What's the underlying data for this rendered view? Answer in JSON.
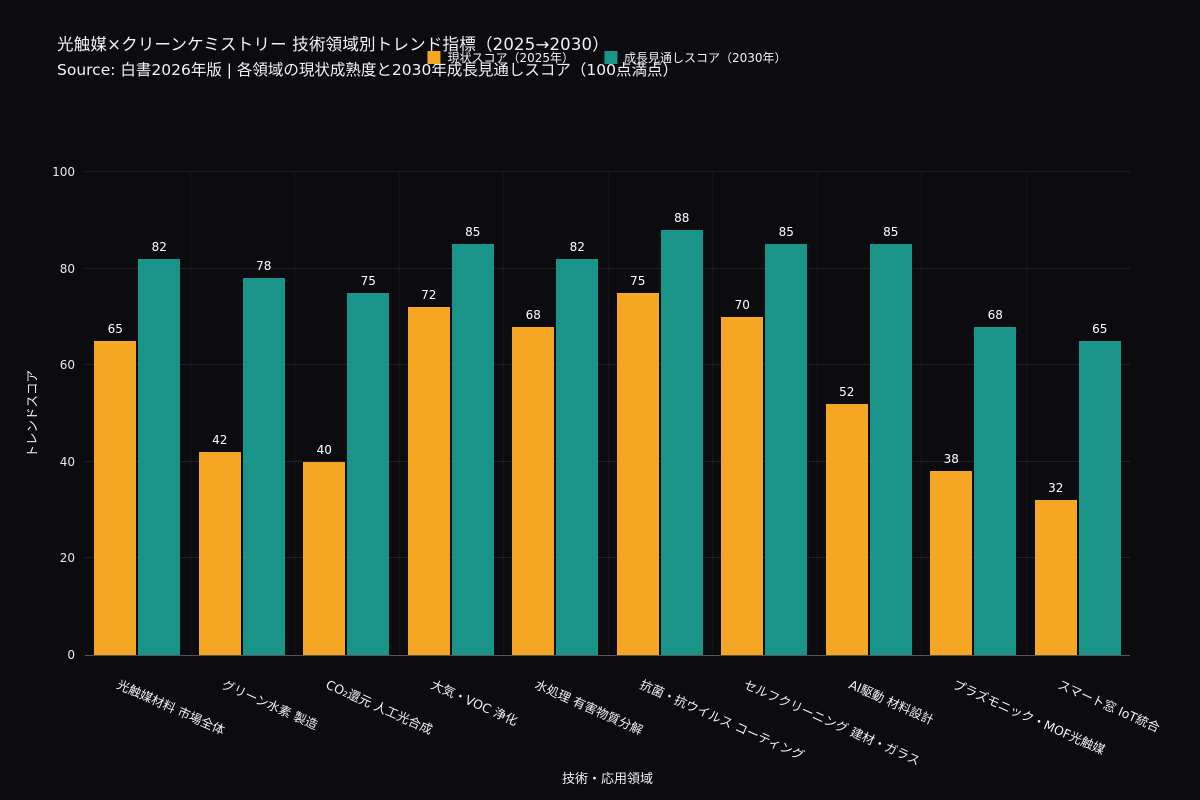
{
  "header": {
    "title": "光触媒×クリーンケミストリー 技術領域別トレンド指標（2025→2030）",
    "subtitle": "Source: 白書2026年版 | 各領域の現状成熟度と2030年成長見通しスコア（100点満点）"
  },
  "colors": {
    "background": "#0c0c10",
    "text": "#f2f2f2",
    "grid": "rgba(255,255,255,0.09)",
    "series_2025": "#f5a623",
    "series_2030": "#1a9488"
  },
  "chart_data": {
    "type": "bar",
    "title": "光触媒×クリーンケミストリー 技術領域別トレンド指標（2025→2030）",
    "subtitle": "Source: 白書2026年版 | 各領域の現状成熟度と2030年成長見通しスコア（100点満点）",
    "xlabel": "技術・応用領域",
    "ylabel": "トレンドスコア",
    "ylim": [
      0,
      100
    ],
    "yticks": [
      0,
      20,
      40,
      60,
      80,
      100
    ],
    "grid": true,
    "legend_position": "top",
    "categories": [
      "光触媒材料 市場全体",
      "グリーン水素 製造",
      "CO₂還元 人工光合成",
      "大気・VOC 浄化",
      "水処理 有害物質分解",
      "抗菌・抗ウイルス コーティング",
      "セルフクリーニング 建材・ガラス",
      "AI駆動 材料設計",
      "プラズモニック・MOF光触媒",
      "スマート窓 IoT統合"
    ],
    "series": [
      {
        "name": "現状スコア（2025年）",
        "color": "#f5a623",
        "values": [
          65,
          42,
          40,
          72,
          68,
          75,
          70,
          52,
          38,
          32
        ]
      },
      {
        "name": "成長見通しスコア（2030年）",
        "color": "#1a9488",
        "values": [
          82,
          78,
          75,
          85,
          82,
          88,
          85,
          85,
          68,
          65
        ]
      }
    ]
  }
}
